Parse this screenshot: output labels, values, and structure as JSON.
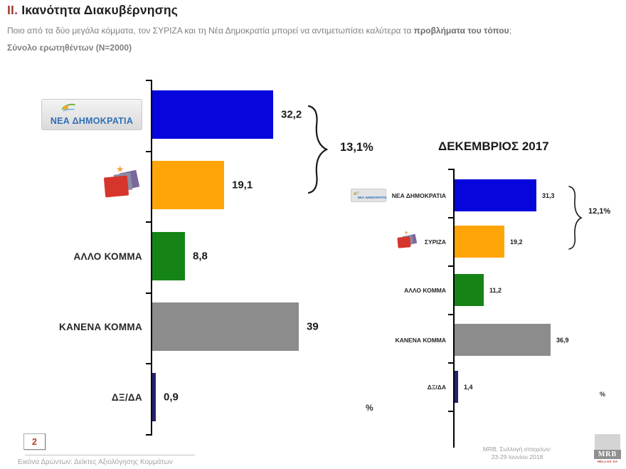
{
  "header": {
    "section_number": "II.",
    "title": "Ικανότητα Διακυβέρνησης",
    "question_prefix": "Ποιο από τα δύο μεγάλα κόμματα, τον ΣΥΡΙΖΑ και τη Νέα Δημοκρατία μπορεί να αντιμετωπίσει καλύτερα τα ",
    "question_bold": "προβλήματα του τόπου",
    "question_suffix": ";",
    "sample_size": "Σύνολο ερωτηθέντων (N=2000)"
  },
  "logos": {
    "nea_dimokratia_text": "ΝΕΑ ΔΗΜΟΚΡΑΤΙΑ",
    "star_icon": "★"
  },
  "chart_data": [
    {
      "type": "bar",
      "orientation": "horizontal",
      "title": "",
      "categories": [
        "ΝΕΑ ΔΗΜΟΚΡΑΤΙΑ",
        "ΣΥΡΙΖΑ",
        "ΑΛΛΟ ΚΟΜΜΑ",
        "ΚΑΝΕΝΑ ΚΟΜΜΑ",
        "ΔΞ/ΔΑ"
      ],
      "values": [
        32.2,
        19.1,
        8.8,
        39,
        0.9
      ],
      "value_labels": [
        "32,2",
        "19,1",
        "8,8",
        "39",
        "0,9"
      ],
      "bar_colors": [
        "#0505DC",
        "#FFA508",
        "#168316",
        "#8C8C8C",
        "#23246F"
      ],
      "difference_label": "13,1%",
      "unit": "%",
      "xlim": [
        0,
        45
      ],
      "label_icons": [
        "nea-dimokratia-logo",
        "syriza-logo",
        null,
        null,
        null
      ],
      "show_label_text": [
        false,
        false,
        true,
        true,
        true
      ]
    },
    {
      "type": "bar",
      "orientation": "horizontal",
      "title": "ΔΕΚΕΜΒΡΙΟΣ 2017",
      "categories": [
        "ΝΕΑ ΔΗΜΟΚΡΑΤΙΑ",
        "ΣΥΡΙΖΑ",
        "ΑΛΛΟ ΚΟΜΜΑ",
        "ΚΑΝΕΝΑ ΚΟΜΜΑ",
        "ΔΞ/ΔΑ"
      ],
      "values": [
        31.3,
        19.2,
        11.2,
        36.9,
        1.4
      ],
      "value_labels": [
        "31,3",
        "19,2",
        "11,2",
        "36,9",
        "1,4"
      ],
      "bar_colors": [
        "#0505DC",
        "#FFA508",
        "#168316",
        "#8C8C8C",
        "#23246F"
      ],
      "difference_label": "12,1%",
      "unit": "%",
      "xlim": [
        0,
        45
      ],
      "label_icons": [
        "nea-dimokratia-logo",
        "syriza-logo",
        null,
        null,
        null
      ],
      "show_label_text": [
        true,
        true,
        true,
        true,
        true
      ]
    }
  ],
  "footer": {
    "page_number": "2",
    "note": "Εικόνα Δρώντων: Δείκτες Αξιολόγησης Κομμάτων",
    "source_line1": "MRB, Συλλογή στοιχείων:",
    "source_line2": "23-29 Ιουνίου 2018",
    "mrb_logo_text": "MRB",
    "mrb_logo_subtext": "HELLAS SA"
  }
}
